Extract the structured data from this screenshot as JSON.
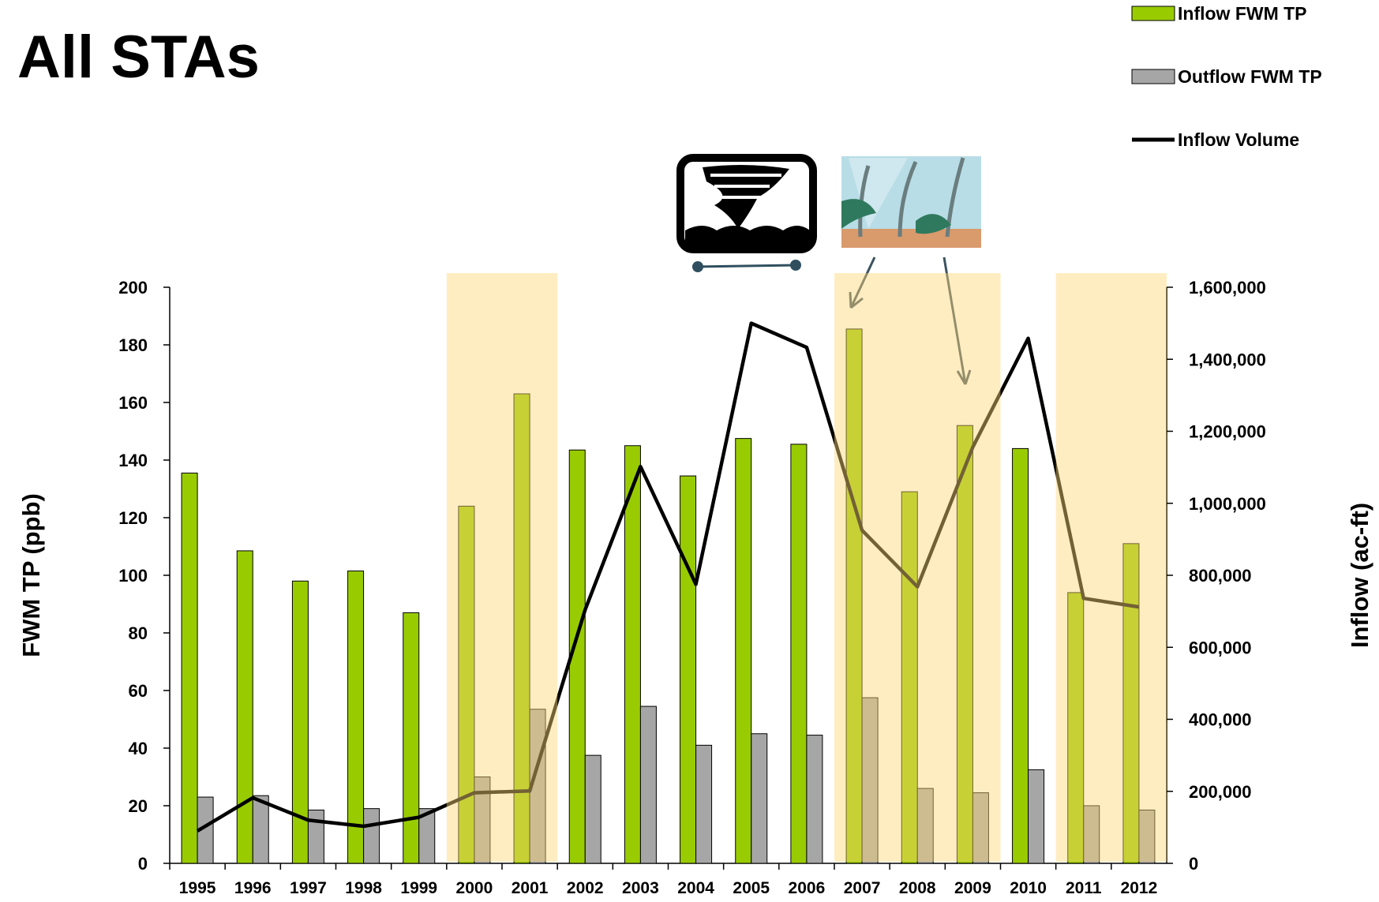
{
  "chart_data": {
    "type": "bar",
    "title": "All STAs",
    "y_label": "FWM TP (ppb)",
    "y2_label": "Inflow (ac-ft)",
    "categories": [
      "1995",
      "1996",
      "1997",
      "1998",
      "1999",
      "2000",
      "2001",
      "2002",
      "2003",
      "2004",
      "2005",
      "2006",
      "2007",
      "2008",
      "2009",
      "2010",
      "2011",
      "2012"
    ],
    "series": [
      {
        "name": "Inflow FWM TP",
        "type": "bar",
        "color": "#99cc00",
        "values": [
          135.5,
          108.5,
          98,
          101.5,
          87,
          124,
          163,
          143.5,
          145,
          134.5,
          147.5,
          145.5,
          185.5,
          129,
          152,
          144,
          94,
          111
        ]
      },
      {
        "name": "Outflow FWM TP",
        "type": "bar",
        "color": "#a6a6a6",
        "values": [
          23,
          23.5,
          18.5,
          19,
          19,
          30,
          53.5,
          37.5,
          54.5,
          41,
          45,
          44.5,
          57.5,
          26,
          24.5,
          32.5,
          20,
          18.5
        ]
      },
      {
        "name": "Inflow Volume",
        "type": "line",
        "axis": "y2",
        "color": "#000000",
        "values": [
          90000,
          182000,
          120000,
          103000,
          128000,
          196000,
          201000,
          704000,
          1102000,
          775000,
          1500000,
          1433000,
          925000,
          768000,
          1156000,
          1458000,
          736000,
          712000
        ]
      }
    ],
    "highlight": [
      false,
      false,
      false,
      false,
      false,
      true,
      true,
      false,
      false,
      false,
      false,
      false,
      true,
      true,
      true,
      false,
      true,
      true
    ],
    "ylim": [
      0,
      200
    ],
    "yticks": [
      0,
      20,
      40,
      60,
      80,
      100,
      120,
      140,
      160,
      180,
      200
    ],
    "y2lim": [
      0,
      1600000
    ],
    "y2ticks": [
      0,
      {
        "value": 200000,
        "label": "200,000"
      },
      {
        "value": 400000,
        "label": "400,000"
      },
      {
        "value": 600000,
        "label": "600,000"
      },
      {
        "value": 800000,
        "label": "800,000"
      },
      {
        "value": 1000000,
        "label": "1,000,000"
      },
      {
        "value": 1200000,
        "label": "1,200,000"
      },
      {
        "value": 1400000,
        "label": "1,400,000"
      },
      {
        "value": 1600000,
        "label": "1,600,000"
      }
    ],
    "legend": "top-right"
  }
}
